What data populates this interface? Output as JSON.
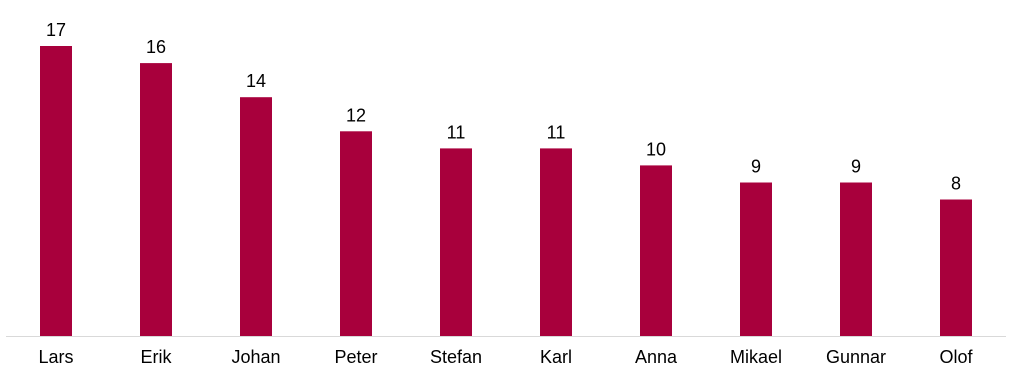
{
  "chart_data": {
    "type": "bar",
    "categories": [
      "Lars",
      "Erik",
      "Johan",
      "Peter",
      "Stefan",
      "Karl",
      "Anna",
      "Mikael",
      "Gunnar",
      "Olof"
    ],
    "values": [
      17,
      16,
      14,
      12,
      11,
      11,
      10,
      9,
      9,
      8
    ],
    "ylim": [
      0,
      17
    ],
    "grid": false,
    "legend": "none",
    "data_labels": true
  },
  "colors": {
    "bar": "#A8003C",
    "axis": "#D9D9D9"
  }
}
